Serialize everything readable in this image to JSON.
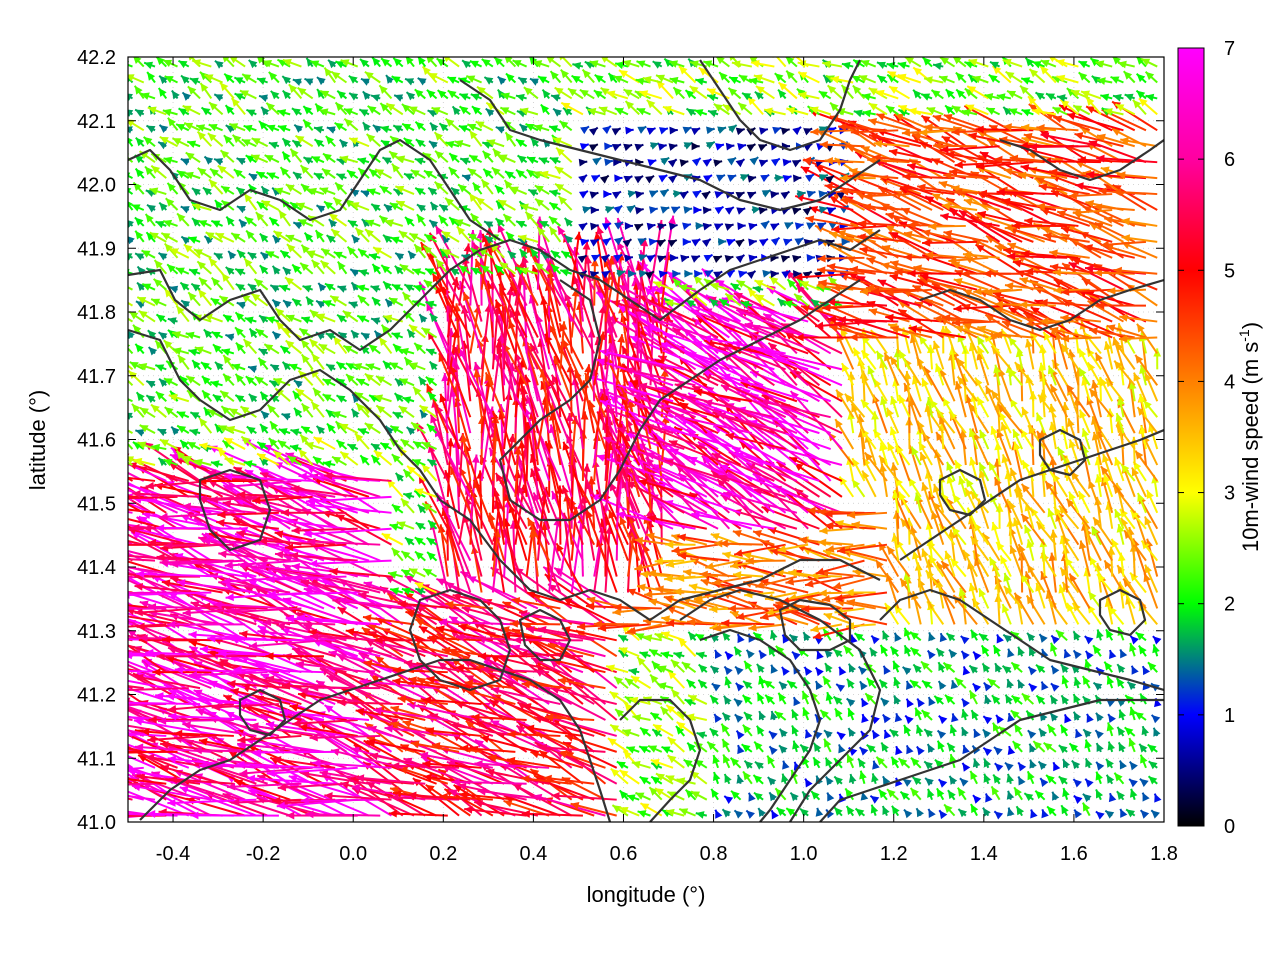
{
  "chart_data": {
    "type": "vector-field",
    "xlabel": "longitude (°)",
    "ylabel": "latitude (°)",
    "xlim": [
      -0.5,
      1.8
    ],
    "ylim": [
      41.0,
      42.2
    ],
    "xticks": [
      "-0.4",
      "-0.2",
      "0.0",
      "0.2",
      "0.4",
      "0.6",
      "0.8",
      "1.0",
      "1.2",
      "1.4",
      "1.6",
      "1.8"
    ],
    "yticks": [
      "41.0",
      "41.1",
      "41.2",
      "41.3",
      "41.4",
      "41.5",
      "41.6",
      "41.7",
      "41.8",
      "41.9",
      "42.0",
      "42.1",
      "42.2"
    ],
    "grid": true,
    "colorbar": {
      "title": "10m-wind speed (m s",
      "title_sup": "-1",
      "title_end": ")",
      "range": [
        0,
        7
      ],
      "ticks": [
        "0",
        "1",
        "2",
        "3",
        "4",
        "5",
        "6",
        "7"
      ],
      "colormap": [
        "#000000",
        "#0000ff",
        "#00ff00",
        "#ffff00",
        "#ff8000",
        "#ff0000",
        "#ff00ff"
      ]
    },
    "regions": [
      {
        "lon": [
          -0.5,
          0.1
        ],
        "lat": [
          41.0,
          41.55
        ],
        "dir_deg": 165,
        "speed": 6.6
      },
      {
        "lon": [
          0.1,
          0.6
        ],
        "lat": [
          41.0,
          41.35
        ],
        "dir_deg": 160,
        "speed": 6.0
      },
      {
        "lon": [
          0.2,
          0.7
        ],
        "lat": [
          41.35,
          41.85
        ],
        "dir_deg": 100,
        "speed": 6.0
      },
      {
        "lon": [
          0.6,
          1.1
        ],
        "lat": [
          41.45,
          41.8
        ],
        "dir_deg": 150,
        "speed": 6.6
      },
      {
        "lon": [
          0.6,
          1.2
        ],
        "lat": [
          41.3,
          41.5
        ],
        "dir_deg": 175,
        "speed": 4.8
      },
      {
        "lon": [
          1.1,
          1.8
        ],
        "lat": [
          41.75,
          42.1
        ],
        "dir_deg": 165,
        "speed": 5.2
      },
      {
        "lon": [
          1.1,
          1.8
        ],
        "lat": [
          41.3,
          41.75
        ],
        "dir_deg": 110,
        "speed": 4.0
      },
      {
        "lon": [
          0.8,
          1.8
        ],
        "lat": [
          41.0,
          41.3
        ],
        "dir_deg": 125,
        "speed": 1.9
      },
      {
        "lon": [
          -0.5,
          0.5
        ],
        "lat": [
          41.6,
          42.2
        ],
        "dir_deg": 145,
        "speed": 2.5
      },
      {
        "lon": [
          0.5,
          1.1
        ],
        "lat": [
          41.85,
          42.1
        ],
        "dir_deg": 20,
        "speed": 1.0
      }
    ]
  }
}
